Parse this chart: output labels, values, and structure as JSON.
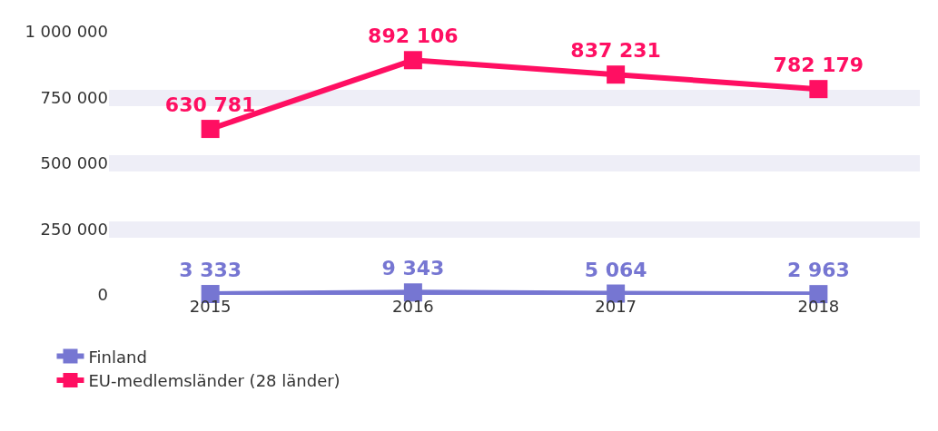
{
  "chart_data": {
    "type": "line",
    "categories": [
      "2015",
      "2016",
      "2017",
      "2018"
    ],
    "series": [
      {
        "name": "Finland",
        "color": "#7676d2",
        "values": [
          3333,
          9343,
          5064,
          2963
        ]
      },
      {
        "name": "EU-medlemsländer (28 länder)",
        "color": "#ff0f62",
        "values": [
          630781,
          892106,
          837231,
          782179
        ]
      }
    ],
    "ylim": [
      0,
      1000000
    ],
    "yticks": [
      {
        "value": 0,
        "label": "0"
      },
      {
        "value": 250000,
        "label": "250 000"
      },
      {
        "value": 500000,
        "label": "500 000"
      },
      {
        "value": 750000,
        "label": "750 000"
      },
      {
        "value": 1000000,
        "label": "1 000 000"
      }
    ],
    "data_labels": true,
    "grid": "y",
    "legend": "bottom left",
    "marker": "square",
    "line_style": "solid"
  }
}
